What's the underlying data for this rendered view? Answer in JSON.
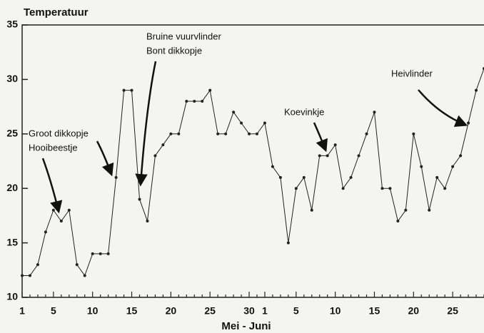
{
  "chart_data": {
    "type": "line",
    "title": "Temperatuur",
    "x_label": "Mei - Juni",
    "categories": [
      "1",
      null,
      null,
      null,
      "5",
      null,
      null,
      null,
      null,
      "10",
      null,
      null,
      null,
      null,
      "15",
      null,
      null,
      null,
      null,
      "20",
      null,
      null,
      null,
      null,
      "25",
      null,
      null,
      null,
      null,
      "30",
      null,
      "1",
      null,
      null,
      null,
      "5",
      null,
      null,
      null,
      null,
      "10",
      null,
      null,
      null,
      null,
      "15",
      null,
      null,
      null,
      null,
      "20",
      null,
      null,
      null,
      null,
      "25",
      null,
      null,
      null,
      null
    ],
    "series": [
      {
        "color": "#222222",
        "values": [
          12,
          12,
          13,
          16,
          18,
          17,
          18,
          13,
          12,
          14,
          14,
          14,
          21,
          29,
          29,
          19,
          17,
          23,
          24,
          25,
          25,
          28,
          28,
          28,
          29,
          25,
          25,
          27,
          26,
          25,
          25,
          26,
          22,
          21,
          15,
          20,
          21,
          18,
          23,
          23,
          24,
          20,
          21,
          23,
          25,
          27,
          20,
          20,
          17,
          18,
          25,
          22,
          18,
          21,
          20,
          22,
          23,
          26,
          29,
          31
        ]
      }
    ],
    "ylim": [
      10,
      35
    ],
    "yticks": [
      10,
      15,
      20,
      25,
      30,
      35
    ],
    "annotations": [
      {
        "lines": [
          "Groot dikkopje",
          "Hooibeestje"
        ]
      },
      {
        "lines": [
          "Bruine vuurvlinder",
          "Bont dikkopje"
        ]
      },
      {
        "lines": [
          "Koevinkje"
        ]
      },
      {
        "lines": [
          "Heivlinder"
        ]
      }
    ]
  }
}
